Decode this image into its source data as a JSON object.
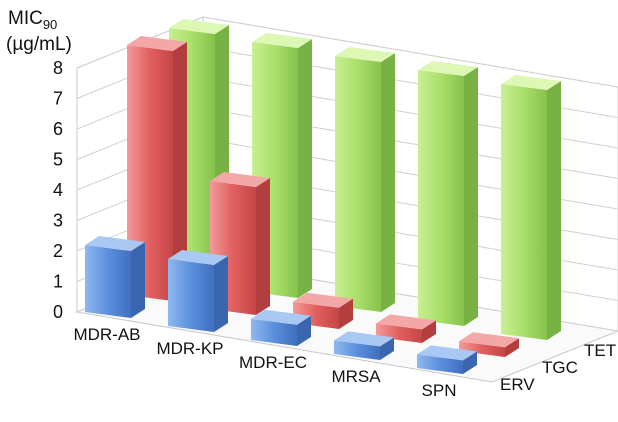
{
  "chart_data": {
    "type": "bar",
    "subtype": "3d-clustered",
    "ylabel_main": "MIC",
    "ylabel_sub": "90",
    "ylabel_unit": "(µg/mL)",
    "categories": [
      "MDR-AB",
      "MDR-KP",
      "MDR-EC",
      "MRSA",
      "SPN"
    ],
    "series": [
      {
        "name": "ERV",
        "color": "#5b8fdc",
        "values": [
          2,
          2,
          0.5,
          0.25,
          0.25
        ]
      },
      {
        "name": "TGC",
        "color": "#e25f5f",
        "values": [
          8,
          4,
          0.5,
          0.25,
          0.125
        ]
      },
      {
        "name": "TET",
        "color": "#9bd45a",
        "values": [
          8,
          8,
          8,
          8,
          8
        ]
      }
    ],
    "ylim": [
      0,
      8
    ],
    "yticks": [
      0,
      1,
      2,
      3,
      4,
      5,
      6,
      7,
      8
    ],
    "grid": true,
    "legend": "series labels along depth axis (right)"
  }
}
